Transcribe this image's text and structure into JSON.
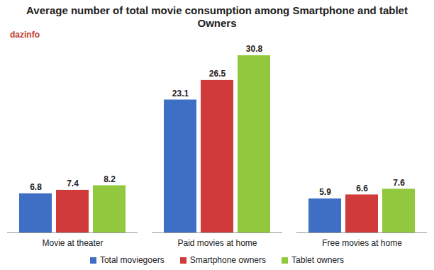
{
  "chart_data": {
    "type": "bar",
    "title": "Average number of total movie consumption among Smartphone and tablet Owners",
    "annotations": [
      "dazinfo"
    ],
    "categories": [
      "Movie at theater",
      "Paid movies at home",
      "Free movies at home"
    ],
    "series": [
      {
        "name": "Total moviegoers",
        "color": "#3f6fc4",
        "values": [
          6.8,
          23.1,
          5.9
        ]
      },
      {
        "name": "Smartphone owners",
        "color": "#d03a3a",
        "values": [
          7.4,
          26.5,
          6.6
        ]
      },
      {
        "name": "Tablet owners",
        "color": "#92c83e",
        "values": [
          8.2,
          30.8,
          7.6
        ]
      }
    ],
    "data_labels": true,
    "tick_labels": "x",
    "legend": "bottom"
  }
}
